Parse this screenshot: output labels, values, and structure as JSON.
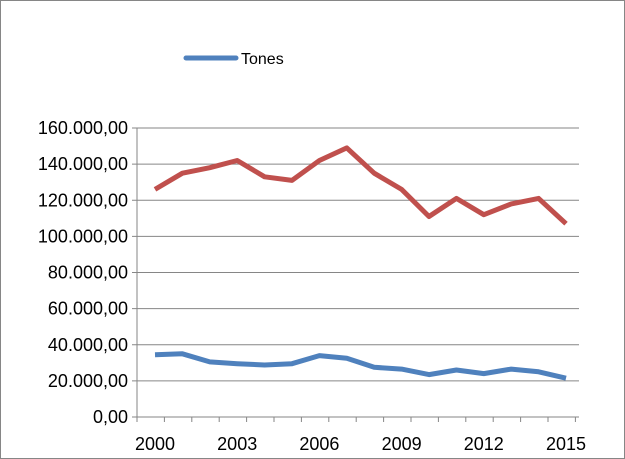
{
  "chart_data": {
    "type": "line",
    "title": "",
    "xlabel": "",
    "ylabel": "",
    "x": [
      2000,
      2001,
      2002,
      2003,
      2004,
      2005,
      2006,
      2007,
      2008,
      2009,
      2010,
      2011,
      2012,
      2013,
      2014,
      2015
    ],
    "x_tick_labels": [
      "2000",
      "2003",
      "2006",
      "2009",
      "2012",
      "2015"
    ],
    "x_tick_values": [
      2000,
      2003,
      2006,
      2009,
      2012,
      2015
    ],
    "ylim": [
      0,
      160000
    ],
    "y_tick_values": [
      0,
      20000,
      40000,
      60000,
      80000,
      100000,
      120000,
      140000,
      160000
    ],
    "y_tick_labels": [
      "0,00",
      "20.000,00",
      "40.000,00",
      "60.000,00",
      "80.000,00",
      "100.000,00",
      "120.000,00",
      "140.000,00",
      "160.000,00"
    ],
    "grid": "horizontal",
    "legend_position": "top",
    "series": [
      {
        "name": "",
        "color": "#C0504D",
        "values": [
          126000,
          135000,
          138000,
          142000,
          133000,
          131000,
          142000,
          149000,
          135000,
          126000,
          111000,
          121000,
          112000,
          118000,
          121000,
          107000
        ]
      },
      {
        "name": "Tones",
        "color": "#4F81BD",
        "values": [
          34500,
          35000,
          30500,
          29500,
          28800,
          29500,
          34000,
          32500,
          27500,
          26500,
          23500,
          26000,
          24000,
          26500,
          25000,
          21500
        ]
      }
    ]
  }
}
